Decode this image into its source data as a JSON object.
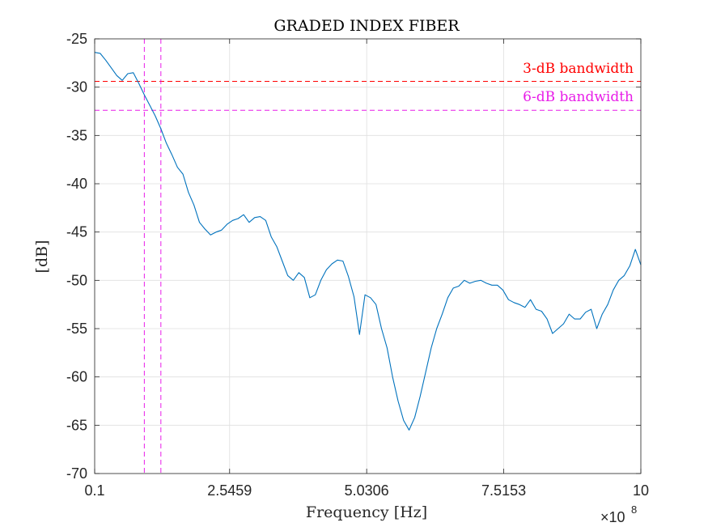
{
  "colors": {
    "series": "#0072BD",
    "grid": "#DFDFDF",
    "axis": "#262626",
    "line_3db": "#FF0000",
    "line_6db": "#E81CE8",
    "vline": "#E81CE8"
  },
  "chart_data": {
    "type": "line",
    "title": "GRADED INDEX FIBER",
    "xlabel": "Frequency [Hz]",
    "ylabel": "[dB]",
    "x_exponent_label": "×10",
    "x_exponent_power": "8",
    "xlim": [
      0.1,
      10
    ],
    "ylim": [
      -70,
      -25
    ],
    "grid": true,
    "x_ticks": [
      0.1,
      2.5459,
      5.0306,
      7.5153,
      10
    ],
    "x_tick_labels": [
      "0.1",
      "2.5459",
      "5.0306",
      "7.5153",
      "10"
    ],
    "y_ticks": [
      -70,
      -65,
      -60,
      -55,
      -50,
      -45,
      -40,
      -35,
      -30,
      -25
    ],
    "y_tick_labels": [
      "-70",
      "-65",
      "-60",
      "-55",
      "-50",
      "-45",
      "-40",
      "-35",
      "-30",
      "-25"
    ],
    "hlines": [
      {
        "name": "3-dB bandwidth",
        "y": -29.4,
        "color_key": "line_3db"
      },
      {
        "name": "6-dB bandwidth",
        "y": -32.4,
        "color_key": "line_6db"
      }
    ],
    "vlines": [
      {
        "x": 1.0
      },
      {
        "x": 1.3
      }
    ],
    "series": [
      {
        "name": "GRADED INDEX FIBER",
        "x": [
          0.1,
          0.2,
          0.3,
          0.4,
          0.5,
          0.6,
          0.7,
          0.8,
          0.9,
          1.0,
          1.1,
          1.2,
          1.3,
          1.4,
          1.5,
          1.6,
          1.7,
          1.8,
          1.9,
          2.0,
          2.1,
          2.2,
          2.3,
          2.4,
          2.5,
          2.6,
          2.7,
          2.8,
          2.9,
          3.0,
          3.1,
          3.2,
          3.3,
          3.4,
          3.5,
          3.6,
          3.7,
          3.8,
          3.9,
          4.0,
          4.1,
          4.2,
          4.3,
          4.4,
          4.5,
          4.6,
          4.7,
          4.8,
          4.9,
          5.0,
          5.1,
          5.2,
          5.3,
          5.4,
          5.5,
          5.6,
          5.7,
          5.8,
          5.9,
          6.0,
          6.1,
          6.2,
          6.3,
          6.4,
          6.5,
          6.6,
          6.7,
          6.8,
          6.9,
          7.0,
          7.1,
          7.2,
          7.3,
          7.4,
          7.5,
          7.6,
          7.7,
          7.8,
          7.9,
          8.0,
          8.1,
          8.2,
          8.3,
          8.4,
          8.5,
          8.6,
          8.7,
          8.8,
          8.9,
          9.0,
          9.1,
          9.2,
          9.3,
          9.4,
          9.5,
          9.6,
          9.7,
          9.8,
          9.9,
          10.0
        ],
        "y": [
          -26.4,
          -26.5,
          -27.2,
          -28.0,
          -28.8,
          -29.3,
          -28.6,
          -28.5,
          -29.6,
          -30.8,
          -31.9,
          -33.0,
          -34.3,
          -35.8,
          -37.0,
          -38.3,
          -39.0,
          -40.9,
          -42.2,
          -44.0,
          -44.7,
          -45.3,
          -45.0,
          -44.8,
          -44.2,
          -43.8,
          -43.6,
          -43.2,
          -44.0,
          -43.5,
          -43.4,
          -43.8,
          -45.5,
          -46.5,
          -48.0,
          -49.5,
          -50.0,
          -49.2,
          -49.7,
          -51.8,
          -51.5,
          -50.0,
          -48.9,
          -48.3,
          -47.9,
          -48.0,
          -49.6,
          -51.7,
          -55.6,
          -51.5,
          -51.8,
          -52.5,
          -55.0,
          -57.0,
          -60.0,
          -62.5,
          -64.5,
          -65.5,
          -64.2,
          -62.0,
          -59.5,
          -57.0,
          -55.0,
          -53.5,
          -51.8,
          -50.8,
          -50.6,
          -50.0,
          -50.3,
          -50.1,
          -50.0,
          -50.3,
          -50.5,
          -50.5,
          -51.0,
          -52.0,
          -52.3,
          -52.5,
          -52.8,
          -52.0,
          -53.0,
          -53.2,
          -54.0,
          -55.5,
          -55.0,
          -54.5,
          -53.5,
          -54.0,
          -54.0,
          -53.3,
          -53.0,
          -55.0,
          -53.5,
          -52.5,
          -51.0,
          -50.0,
          -49.5,
          -48.5,
          -46.8,
          -48.4
        ]
      }
    ]
  }
}
